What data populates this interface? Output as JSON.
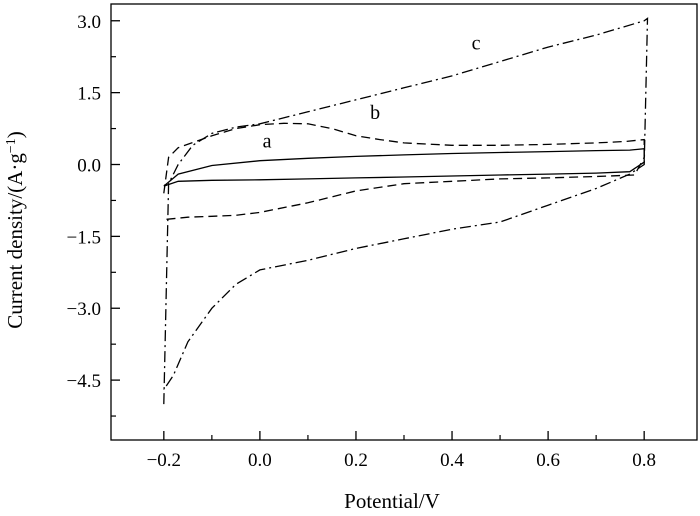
{
  "chart_data": {
    "type": "line",
    "xlabel": "Potential/V",
    "ylabel": "Current density/(A·g",
    "ylabel_sup": "−1",
    "ylabel_close": ")",
    "xlim": [
      -0.31,
      0.91
    ],
    "ylim": [
      -5.75,
      3.35
    ],
    "xticks": [
      -0.2,
      0.0,
      0.2,
      0.4,
      0.6,
      0.8
    ],
    "xtick_labels": [
      "−0.2",
      "0.0",
      "0.2",
      "0.4",
      "0.6",
      "0.8"
    ],
    "xminor": [
      -0.1,
      0.1,
      0.3,
      0.5,
      0.7
    ],
    "yticks": [
      3.0,
      1.5,
      0.0,
      -1.5,
      -3.0,
      -4.5
    ],
    "ytick_labels": [
      "3.0",
      "1.5",
      "0.0",
      "−1.5",
      "−3.0",
      "−4.5"
    ],
    "yminor": [
      2.25,
      0.75,
      -0.75,
      -2.25,
      -3.75,
      -5.25
    ],
    "grid": false,
    "legend": "none",
    "series": [
      {
        "name": "a",
        "style": "solid",
        "label_at": [
          0.015,
          0.35
        ],
        "x": [
          -0.2,
          -0.17,
          -0.1,
          0.0,
          0.1,
          0.2,
          0.3,
          0.4,
          0.5,
          0.6,
          0.7,
          0.77,
          0.8,
          0.8,
          0.77,
          0.7,
          0.6,
          0.5,
          0.4,
          0.3,
          0.2,
          0.1,
          0.0,
          -0.1,
          -0.17,
          -0.2
        ],
        "y": [
          -0.45,
          -0.2,
          -0.02,
          0.08,
          0.13,
          0.17,
          0.2,
          0.23,
          0.25,
          0.27,
          0.29,
          0.3,
          0.33,
          0.05,
          -0.15,
          -0.18,
          -0.2,
          -0.22,
          -0.24,
          -0.26,
          -0.28,
          -0.3,
          -0.32,
          -0.33,
          -0.35,
          -0.45
        ]
      },
      {
        "name": "b",
        "style": "dashed",
        "label_at": [
          0.24,
          0.95
        ],
        "x": [
          -0.2,
          -0.19,
          -0.17,
          -0.1,
          -0.05,
          0.0,
          0.05,
          0.1,
          0.15,
          0.2,
          0.25,
          0.3,
          0.4,
          0.5,
          0.6,
          0.7,
          0.76,
          0.8,
          0.8,
          0.78,
          0.7,
          0.6,
          0.5,
          0.4,
          0.3,
          0.2,
          0.1,
          0.0,
          -0.05,
          -0.1,
          -0.15,
          -0.2
        ],
        "y": [
          -0.6,
          0.15,
          0.35,
          0.6,
          0.75,
          0.83,
          0.86,
          0.85,
          0.75,
          0.6,
          0.52,
          0.45,
          0.4,
          0.4,
          0.42,
          0.45,
          0.48,
          0.52,
          0.15,
          -0.22,
          -0.25,
          -0.28,
          -0.3,
          -0.35,
          -0.4,
          -0.55,
          -0.8,
          -1.0,
          -1.06,
          -1.08,
          -1.1,
          -1.15
        ]
      },
      {
        "name": "c",
        "style": "dashdot",
        "label_at": [
          0.45,
          2.4
        ],
        "x": [
          -0.2,
          -0.19,
          -0.17,
          -0.14,
          -0.1,
          -0.05,
          0.0,
          0.1,
          0.2,
          0.3,
          0.4,
          0.5,
          0.6,
          0.7,
          0.8,
          0.807,
          0.8,
          0.77,
          0.7,
          0.6,
          0.5,
          0.4,
          0.3,
          0.2,
          0.1,
          0.0,
          -0.05,
          -0.1,
          -0.15,
          -0.18,
          -0.2
        ],
        "y": [
          -5.0,
          -0.4,
          0.0,
          0.4,
          0.65,
          0.78,
          0.85,
          1.1,
          1.35,
          1.6,
          1.85,
          2.15,
          2.45,
          2.7,
          3.0,
          3.05,
          0.0,
          -0.2,
          -0.5,
          -0.85,
          -1.2,
          -1.35,
          -1.55,
          -1.75,
          -2.0,
          -2.2,
          -2.5,
          -3.0,
          -3.7,
          -4.4,
          -4.7
        ]
      }
    ]
  }
}
